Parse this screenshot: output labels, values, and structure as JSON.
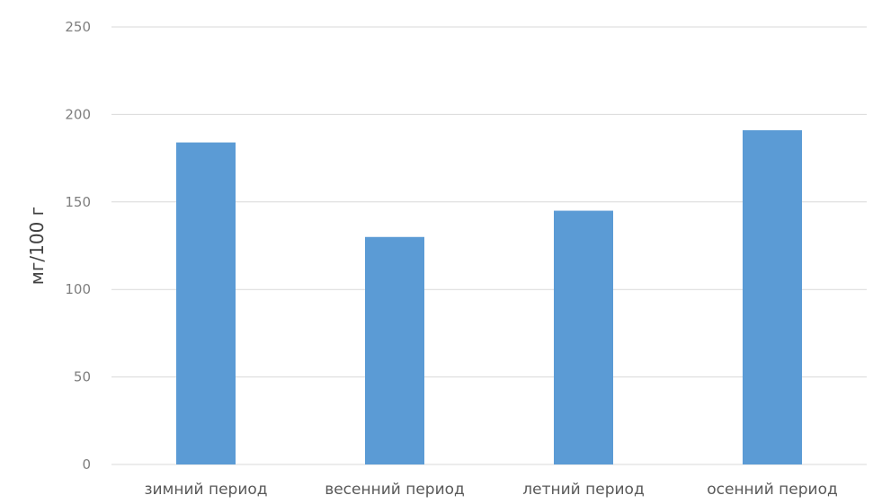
{
  "chart_data": {
    "type": "bar",
    "title": "",
    "xlabel": "",
    "ylabel": "мг/100 г",
    "categories": [
      "зимний  период",
      "весенний период",
      "летний период",
      "осенний период"
    ],
    "series": [
      {
        "values": [
          184,
          130,
          145,
          191
        ],
        "color": "#5b9bd5"
      }
    ],
    "ylim": [
      0,
      250
    ],
    "yticks": [
      0,
      50,
      100,
      150,
      200,
      250
    ],
    "grid": true,
    "legend": "none"
  }
}
